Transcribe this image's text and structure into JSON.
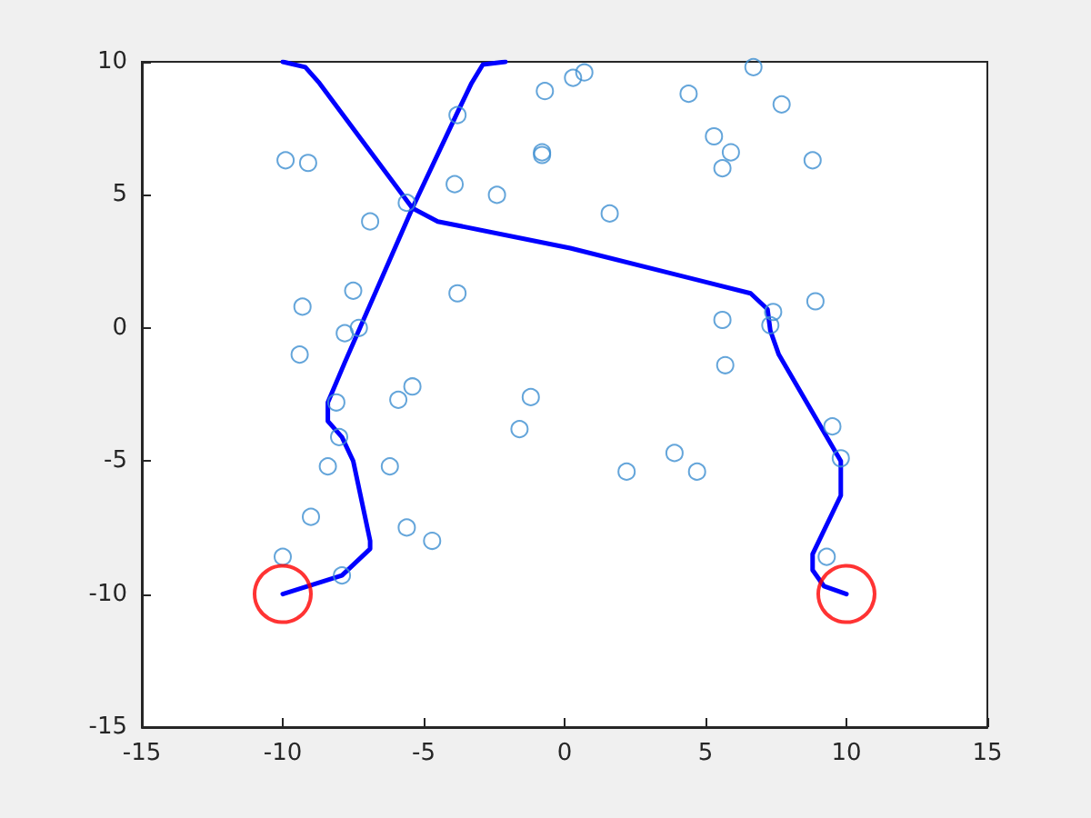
{
  "chart_data": {
    "type": "scatter",
    "xlim": [
      -15,
      15
    ],
    "ylim": [
      -15,
      10
    ],
    "xticks": [
      -15,
      -10,
      -5,
      0,
      5,
      10,
      15
    ],
    "yticks": [
      -15,
      -10,
      -5,
      0,
      5,
      10
    ],
    "grid": false,
    "series": [
      {
        "marker": "circle",
        "color": "#3d8fd1",
        "x": [
          -9.9,
          -9.1,
          -6.9,
          -3.9,
          -2.4,
          -5.6,
          -3.8,
          -0.7,
          -0.8,
          -0.8,
          0.3,
          0.7,
          4.4,
          6.7,
          7.7,
          5.3,
          5.9,
          5.6,
          8.8,
          1.6,
          8.9,
          5.6,
          7.4,
          7.3,
          5.7,
          -9.3,
          -7.5,
          -7.8,
          -7.3,
          -9.4,
          -3.8,
          -8.1,
          -8.0,
          -5.9,
          -5.4,
          -1.2,
          -1.6,
          -8.4,
          -6.2,
          3.9,
          4.7,
          2.2,
          -9.0,
          -5.6,
          -4.7,
          -10.0,
          -7.9,
          9.5,
          9.8,
          9.3
        ],
        "values": [
          6.3,
          6.2,
          4.0,
          5.4,
          5.0,
          4.7,
          8.0,
          8.9,
          6.6,
          6.5,
          9.4,
          9.6,
          8.8,
          9.8,
          8.4,
          7.2,
          6.6,
          6.0,
          6.3,
          4.3,
          1.0,
          0.3,
          0.6,
          0.1,
          -1.4,
          0.8,
          1.4,
          -0.2,
          0.0,
          -1.0,
          1.3,
          -2.8,
          -4.1,
          -2.7,
          -2.2,
          -2.6,
          -3.8,
          -5.2,
          -5.2,
          -4.7,
          -5.4,
          -5.4,
          -7.1,
          -7.5,
          -8.0,
          -8.6,
          -9.3,
          -3.7,
          -4.9,
          -8.6
        ]
      },
      {
        "type": "line",
        "marker": "none",
        "line_style": "solid",
        "color": "#0000ff",
        "x": [
          -10,
          -7.9,
          -6.9,
          -6.9,
          -7.5,
          -7.9,
          -8.4,
          -8.4,
          -7.8,
          -5.4,
          -3.8,
          -3.3,
          -2.9,
          -2.1
        ],
        "values": [
          -10,
          -9.3,
          -8.3,
          -8.0,
          -5.0,
          -4.1,
          -3.5,
          -2.8,
          -1.3,
          4.5,
          8.1,
          9.2,
          9.9,
          10
        ]
      },
      {
        "type": "line",
        "marker": "none",
        "line_style": "solid",
        "color": "#0000ff",
        "x": [
          -10,
          -9.2,
          -8.7,
          -5.4,
          -4.5,
          0.2,
          6.6,
          7.2,
          7.3,
          7.6,
          9.8,
          9.8,
          8.8,
          8.8,
          9.2,
          10
        ],
        "values": [
          10,
          9.8,
          9.2,
          4.5,
          4.0,
          3.0,
          1.3,
          0.7,
          -0.1,
          -1.0,
          -5.0,
          -6.3,
          -8.5,
          -9.1,
          -9.7,
          -10
        ]
      },
      {
        "type": "scatter",
        "marker": "circle",
        "color": "#ff0000",
        "x": [
          -10,
          10
        ],
        "values": [
          -10,
          -10
        ]
      }
    ]
  }
}
